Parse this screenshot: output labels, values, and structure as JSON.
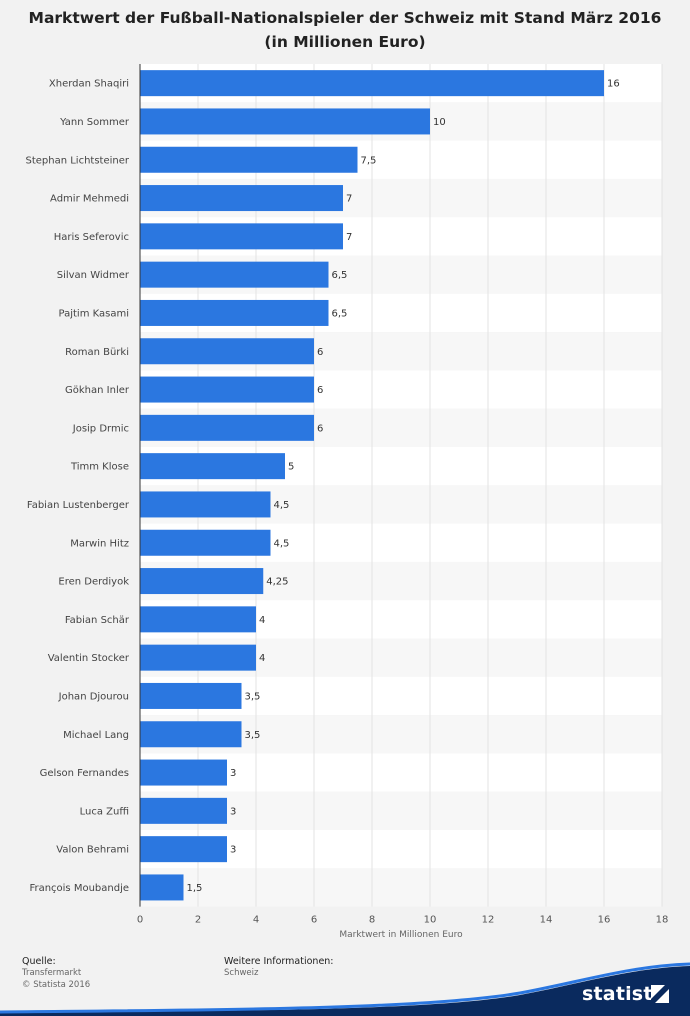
{
  "chart_data": {
    "type": "bar",
    "orientation": "horizontal",
    "title": "Marktwert der Fußball-Nationalspieler der Schweiz mit Stand März 2016 (in Millionen Euro)",
    "xlabel": "Marktwert in Millionen Euro",
    "ylabel": "",
    "xlim": [
      0,
      18
    ],
    "xticks": [
      0,
      2,
      4,
      6,
      8,
      10,
      12,
      14,
      16,
      18
    ],
    "grid": true,
    "categories": [
      "Xherdan Shaqiri",
      "Yann Sommer",
      "Stephan Lichtsteiner",
      "Admir Mehmedi",
      "Haris Seferovic",
      "Silvan Widmer",
      "Pajtim Kasami",
      "Roman Bürki",
      "Gökhan Inler",
      "Josip Drmic",
      "Timm Klose",
      "Fabian Lustenberger",
      "Marwin Hitz",
      "Eren Derdiyok",
      "Fabian Schär",
      "Valentin Stocker",
      "Johan Djourou",
      "Michael Lang",
      "Gelson Fernandes",
      "Luca Zuffi",
      "Valon Behrami",
      "François Moubandje"
    ],
    "values": [
      16,
      10,
      7.5,
      7,
      7,
      6.5,
      6.5,
      6,
      6,
      6,
      5,
      4.5,
      4.5,
      4.25,
      4,
      4,
      3.5,
      3.5,
      3,
      3,
      3,
      1.5
    ],
    "value_labels": [
      "16",
      "10",
      "7,5",
      "7",
      "7",
      "6,5",
      "6,5",
      "6",
      "6",
      "6",
      "5",
      "4,5",
      "4,5",
      "4,25",
      "4",
      "4",
      "3,5",
      "3,5",
      "3",
      "3",
      "3",
      "1,5"
    ],
    "colors": {
      "bar": "#2b77e0",
      "row_alt": "#ffffff",
      "row": "#f7f7f7",
      "grid": "#e3e3e3"
    }
  },
  "footer": {
    "source_heading": "Quelle:",
    "source_line1": "Transfermarkt",
    "source_line2": "© Statista 2016",
    "info_heading": "Weitere Informationen:",
    "info_line": "Schweiz"
  },
  "brand": {
    "name": "statista",
    "icon": "statista-logo-icon",
    "color": "#0a2a5e"
  }
}
